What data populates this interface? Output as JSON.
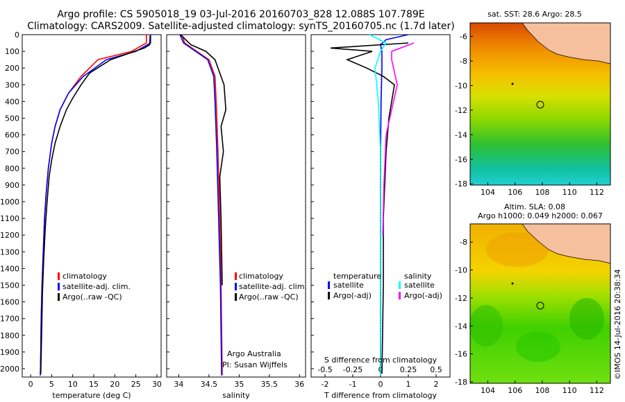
{
  "header": {
    "line1": "Argo profile: CS 5905018_19 03-Jul-2016 20160703_828 12.088S 107.789E",
    "line2": "Climatology: CARS2009. Satellite-adjusted climatology: synTS_20160705.nc (1.7d later)"
  },
  "colors": {
    "climatology": "#ff0000",
    "satellite": "#0000ff",
    "argo": "#000000",
    "sal_satellite": "#00ffff",
    "sal_argo": "#ff00ff"
  },
  "depth_ticks": [
    "0",
    "100",
    "200",
    "300",
    "400",
    "500",
    "600",
    "700",
    "800",
    "900",
    "1000",
    "1100",
    "1200",
    "1300",
    "1400",
    "1500",
    "1600",
    "1700",
    "1800",
    "1900",
    "2000"
  ],
  "panel_temp": {
    "xlabel": "temperature (deg C)",
    "xticks": [
      "0",
      "5",
      "10",
      "15",
      "20",
      "25",
      "30"
    ],
    "legend": [
      "climatology",
      "satellite-adj. clim.",
      "Argo(..raw -QC)"
    ]
  },
  "panel_sal": {
    "xlabel": "salinity",
    "xticks": [
      "34",
      "34.5",
      "35",
      "35.5",
      "36"
    ],
    "legend": [
      "climatology",
      "satellite-adj. clim.",
      "Argo(..raw -QC)"
    ],
    "note1": "Argo Australia",
    "note2": "PI: Susan Wijffels"
  },
  "panel_diff": {
    "xlabel": "T difference from climatology",
    "top_label": "S difference from climatology",
    "xticks_T": [
      "-2",
      "-1",
      "0",
      "1",
      "2"
    ],
    "xticks_S": [
      "-0.5",
      "-0.25",
      "0",
      "0.25",
      "0.5"
    ],
    "legend_temp_head": "temperature",
    "legend_sal_head": "salinity",
    "legend_sat": "satellite",
    "legend_argo": "Argo(-adj)"
  },
  "map_sst": {
    "title": "sat. SST: 28.6 Argo: 28.5",
    "xticks": [
      "104",
      "106",
      "108",
      "110",
      "112"
    ],
    "yticks": [
      "-6",
      "-8",
      "-10",
      "-12",
      "-14",
      "-16",
      "-18"
    ]
  },
  "map_sla": {
    "title1": "Altim. SLA: 0.08",
    "title2": "Argo h1000: 0.049 h2000: 0.067",
    "xticks": [
      "104",
      "106",
      "108",
      "110",
      "112"
    ],
    "yticks": [
      "-8",
      "-10",
      "-12",
      "-14",
      "-16",
      "-18"
    ]
  },
  "credit": "©IMOS 14-Jul-2016 20:38:34",
  "chart_data": [
    {
      "type": "line",
      "title": "",
      "xlabel": "temperature (deg C)",
      "ylabel": "",
      "xlim": [
        -2,
        31
      ],
      "ylim": [
        2050,
        0
      ],
      "series": [
        {
          "name": "climatology",
          "x": [
            27.5,
            27.5,
            24,
            16,
            12,
            9,
            7,
            5.8,
            5,
            4.2,
            3.7,
            3.3,
            3.0,
            2.7,
            2.5,
            2.4,
            2.3
          ],
          "y": [
            0,
            50,
            100,
            150,
            250,
            350,
            450,
            550,
            650,
            800,
            950,
            1100,
            1300,
            1500,
            1700,
            1900,
            2040
          ]
        },
        {
          "name": "satellite-adj. clim.",
          "x": [
            28.5,
            28.5,
            25,
            18,
            12.5,
            9,
            7,
            5.8,
            5,
            4.2,
            3.7,
            3.3,
            3.0,
            2.7,
            2.5,
            2.4,
            2.3
          ],
          "y": [
            0,
            50,
            100,
            150,
            250,
            350,
            450,
            550,
            650,
            800,
            950,
            1100,
            1300,
            1500,
            1700,
            1900,
            2040
          ]
        },
        {
          "name": "Argo(..raw -QC)",
          "x": [
            28.4,
            28.3,
            27,
            19,
            14,
            12,
            10,
            8.5,
            7,
            5.8,
            5,
            4.4,
            3.9,
            3.5,
            3.1,
            2.8,
            2.6,
            2.4
          ],
          "y": [
            5,
            60,
            80,
            150,
            230,
            300,
            380,
            450,
            550,
            650,
            750,
            850,
            1000,
            1150,
            1350,
            1550,
            1800,
            2030
          ]
        }
      ]
    },
    {
      "type": "line",
      "title": "",
      "xlabel": "salinity",
      "ylabel": "",
      "xlim": [
        33.8,
        36.1
      ],
      "ylim": [
        2050,
        0
      ],
      "series": [
        {
          "name": "climatology",
          "x": [
            34.05,
            34.1,
            34.3,
            34.5,
            34.6,
            34.62,
            34.65,
            34.68,
            34.7,
            34.72
          ],
          "y": [
            0,
            50,
            100,
            150,
            250,
            400,
            700,
            1100,
            1500,
            2040
          ]
        },
        {
          "name": "satellite-adj. clim.",
          "x": [
            34.02,
            34.08,
            34.28,
            34.48,
            34.58,
            34.6,
            34.63,
            34.66,
            34.69,
            34.71
          ],
          "y": [
            0,
            50,
            100,
            150,
            250,
            400,
            700,
            1100,
            1500,
            2040
          ]
        },
        {
          "name": "Argo(..raw -QC)",
          "x": [
            34.03,
            34.2,
            34.45,
            34.6,
            34.75,
            34.78,
            34.7,
            34.74,
            34.68,
            34.7,
            34.72
          ],
          "y": [
            0,
            60,
            100,
            150,
            300,
            450,
            550,
            700,
            850,
            1100,
            1500
          ]
        }
      ]
    },
    {
      "type": "line",
      "title": "",
      "xlabel": "T difference from climatology",
      "ylabel": "",
      "xlim": [
        -2.5,
        2.5
      ],
      "ylim": [
        2050,
        0
      ],
      "series": [
        {
          "name": "satellite",
          "x": [
            1.0,
            0.2,
            0,
            0.05,
            0.05,
            0.02,
            0,
            0,
            0,
            0
          ],
          "y": [
            0,
            30,
            60,
            100,
            200,
            400,
            700,
            1100,
            1500,
            2040
          ]
        },
        {
          "name": "Argo(-adj)",
          "x": [
            1.0,
            -1.8,
            -0.3,
            -1.2,
            -0.5,
            0.1,
            0.5,
            0.4,
            0.3,
            0.25,
            0.2,
            0.15,
            0.1,
            0.1,
            0.05
          ],
          "y": [
            50,
            80,
            100,
            150,
            200,
            250,
            300,
            400,
            500,
            600,
            700,
            900,
            1100,
            1500,
            2030
          ]
        }
      ]
    },
    {
      "type": "line",
      "title": "",
      "xlabel": "S difference from climatology",
      "ylabel": "",
      "xlim": [
        -0.625,
        0.625
      ],
      "ylim": [
        2050,
        0
      ],
      "series": [
        {
          "name": "satellite",
          "x": [
            -0.1,
            0.05,
            0,
            -0.05,
            -0.02,
            0,
            0,
            0
          ],
          "y": [
            0,
            50,
            100,
            200,
            400,
            700,
            1200,
            2040
          ]
        },
        {
          "name": "Argo(-adj)",
          "x": [
            0.3,
            0.1,
            0.1,
            0.15,
            0.1,
            0.05,
            0.03,
            0.02
          ],
          "y": [
            50,
            100,
            150,
            300,
            450,
            600,
            900,
            1200
          ]
        }
      ]
    }
  ]
}
